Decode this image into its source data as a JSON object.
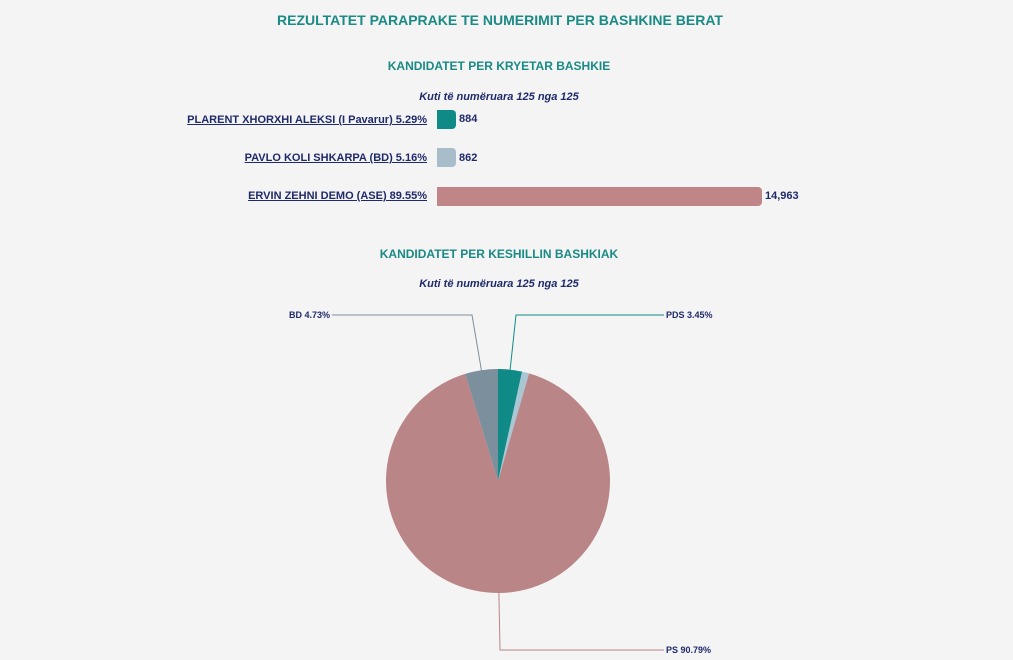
{
  "page_title": "REZULTATET PARAPRAKE TE NUMERIMIT PER BASHKINE BERAT",
  "mayor_section": {
    "title": "KANDIDATET PER KRYETAR BASHKIE",
    "boxes": "Kuti të numëruara 125 nga 125"
  },
  "council_section": {
    "title": "KANDIDATET PER KESHILLIN BASHKIAK",
    "boxes": "Kuti të numëruara 125 nga 125"
  },
  "chart_data": [
    {
      "type": "bar",
      "orientation": "horizontal",
      "categories": [
        "PLARENT XHORXHI ALEKSI (I Pavarur) 5.29%",
        "PAVLO KOLI SHKARPA (BD) 5.16%",
        "ERVIN ZEHNI DEMO (ASE) 89.55%"
      ],
      "values": [
        884,
        862,
        14963
      ],
      "value_labels": [
        "884",
        "862",
        "14,963"
      ],
      "colors": [
        "#0f8a86",
        "#a9bcc9",
        "#bf8587"
      ]
    },
    {
      "type": "pie",
      "slices": [
        {
          "label": "PDS 3.45%",
          "value": 3.45,
          "color": "#0f8a86"
        },
        {
          "label": "",
          "value": 1.03,
          "color": "#a9c6d3"
        },
        {
          "label": "PS 90.79%",
          "value": 90.79,
          "color": "#ba8587"
        },
        {
          "label": "BD 4.73%",
          "value": 4.73,
          "color": "#7b8f9c"
        }
      ]
    }
  ]
}
